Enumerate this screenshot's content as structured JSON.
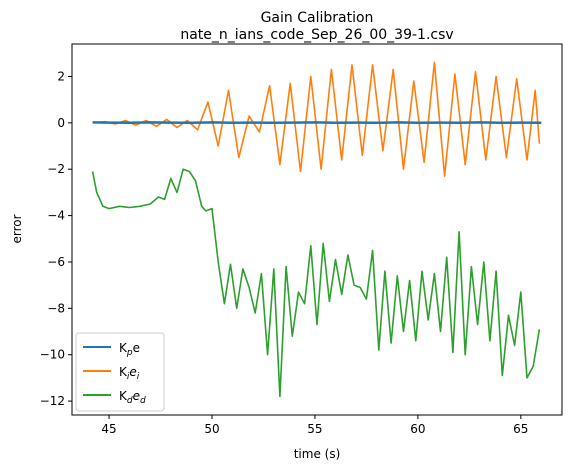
{
  "chart_data": {
    "type": "line",
    "title": "Gain Calibration",
    "subtitle": "nate_n_ians_code_Sep_26_00_39-1.csv",
    "xlabel": "time (s)",
    "ylabel": "error",
    "xlim": [
      43.2,
      67.0
    ],
    "ylim": [
      -12.6,
      3.4
    ],
    "xticks": [
      45,
      50,
      55,
      60,
      65
    ],
    "yticks": [
      -12,
      -10,
      -8,
      -6,
      -4,
      -2,
      0,
      2
    ],
    "xtick_labels": [
      "45",
      "50",
      "55",
      "60",
      "65"
    ],
    "ytick_labels": [
      "−12",
      "−10",
      "−8",
      "−6",
      "−4",
      "−2",
      "0",
      "2"
    ],
    "grid": false,
    "legend_position": "lower-left",
    "series": [
      {
        "name": "Kₚe",
        "color": "#1f77b4",
        "x": [
          44.2,
          45,
          46,
          47,
          48,
          49,
          50,
          51,
          52,
          53,
          54,
          55,
          56,
          57,
          58,
          59,
          60,
          61,
          62,
          63,
          64,
          65,
          66
        ],
        "y": [
          0.02,
          0.01,
          0.0,
          0.02,
          0.01,
          0.0,
          0.02,
          0.0,
          0.01,
          0.0,
          0.01,
          0.02,
          0.0,
          0.01,
          0.0,
          0.02,
          0.0,
          0.01,
          0.0,
          0.02,
          0.0,
          0.01,
          0.0
        ]
      },
      {
        "name": "Kᵢeᵢ",
        "color": "#ff7f0e",
        "x": [
          44.2,
          44.8,
          45.3,
          45.8,
          46.3,
          46.8,
          47.3,
          47.8,
          48.3,
          48.8,
          49.3,
          49.8,
          50.3,
          50.8,
          51.3,
          51.8,
          52.3,
          52.8,
          53.3,
          53.8,
          54.3,
          54.8,
          55.3,
          55.8,
          56.3,
          56.8,
          57.3,
          57.8,
          58.3,
          58.8,
          59.3,
          59.8,
          60.3,
          60.8,
          61.3,
          61.8,
          62.3,
          62.8,
          63.3,
          63.8,
          64.3,
          64.8,
          65.3,
          65.7,
          65.9
        ],
        "y": [
          0.0,
          0.05,
          -0.05,
          0.1,
          -0.1,
          0.1,
          -0.15,
          0.15,
          -0.2,
          0.1,
          -0.3,
          0.9,
          -1.0,
          1.4,
          -1.5,
          0.3,
          -0.4,
          1.6,
          -1.8,
          1.7,
          -2.1,
          2.0,
          -2.0,
          2.3,
          -1.6,
          2.5,
          -1.4,
          2.5,
          -1.2,
          2.3,
          -2.0,
          1.8,
          -1.7,
          2.6,
          -2.3,
          2.1,
          -1.8,
          2.2,
          -1.6,
          2.0,
          -1.5,
          1.9,
          -1.6,
          1.4,
          -0.9
        ]
      },
      {
        "name": "K_d e_d",
        "color": "#2ca02c",
        "x": [
          44.2,
          44.4,
          44.7,
          45.0,
          45.5,
          46.0,
          46.5,
          47.0,
          47.4,
          47.7,
          48.0,
          48.3,
          48.6,
          48.9,
          49.2,
          49.5,
          49.7,
          50.0,
          50.3,
          50.6,
          50.9,
          51.2,
          51.5,
          51.8,
          52.1,
          52.4,
          52.7,
          53.0,
          53.3,
          53.6,
          53.9,
          54.2,
          54.5,
          54.8,
          55.1,
          55.4,
          55.7,
          56.0,
          56.3,
          56.6,
          56.9,
          57.2,
          57.5,
          57.8,
          58.1,
          58.4,
          58.7,
          59.0,
          59.3,
          59.6,
          59.9,
          60.2,
          60.5,
          60.8,
          61.1,
          61.4,
          61.7,
          62.0,
          62.3,
          62.6,
          62.9,
          63.2,
          63.5,
          63.8,
          64.1,
          64.4,
          64.7,
          65.0,
          65.3,
          65.6,
          65.9
        ],
        "y": [
          -2.1,
          -3.0,
          -3.6,
          -3.7,
          -3.6,
          -3.65,
          -3.6,
          -3.5,
          -3.2,
          -3.3,
          -2.4,
          -3.0,
          -2.0,
          -2.1,
          -2.5,
          -3.6,
          -3.8,
          -3.7,
          -6.0,
          -7.8,
          -6.1,
          -8.0,
          -6.3,
          -7.1,
          -8.2,
          -6.5,
          -10.0,
          -6.3,
          -11.8,
          -6.2,
          -9.2,
          -7.3,
          -7.8,
          -5.3,
          -8.7,
          -5.2,
          -7.7,
          -5.9,
          -7.4,
          -5.7,
          -7.0,
          -7.1,
          -7.6,
          -5.5,
          -9.8,
          -6.4,
          -9.5,
          -6.6,
          -9.0,
          -6.8,
          -9.4,
          -6.4,
          -8.5,
          -6.5,
          -9.0,
          -5.8,
          -9.9,
          -4.7,
          -10.0,
          -6.2,
          -8.7,
          -6.0,
          -9.4,
          -6.4,
          -10.9,
          -8.3,
          -9.6,
          -7.3,
          -11.0,
          -10.5,
          -8.9
        ]
      }
    ]
  }
}
